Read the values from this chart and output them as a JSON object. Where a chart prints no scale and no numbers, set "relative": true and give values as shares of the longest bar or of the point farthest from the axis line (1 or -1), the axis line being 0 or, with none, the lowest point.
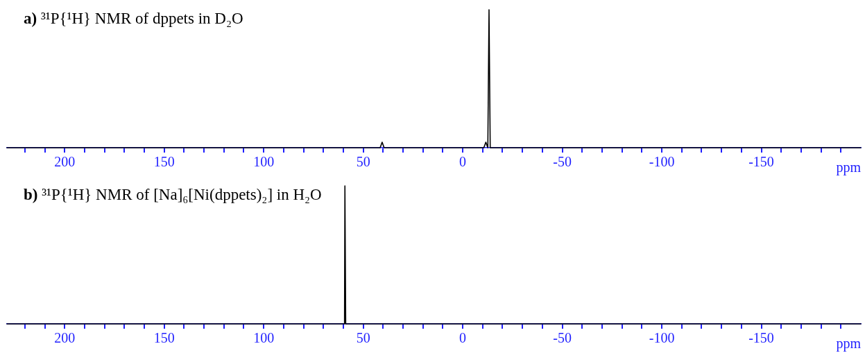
{
  "chart_data": [
    {
      "type": "line",
      "title": "a) ³¹P{¹H} NMR of dppets in D₂O",
      "xlabel": "ppm",
      "relative": true,
      "marker": "none",
      "color": "#000000",
      "xlim": [
        229,
        -200
      ],
      "x": [
        229,
        41.5,
        40.5,
        39.5,
        -10.6,
        -11.6,
        -12.6,
        -13.2,
        -13.8,
        -200
      ],
      "values": [
        0,
        0,
        0.04,
        0,
        0,
        0.04,
        0,
        1,
        0,
        0
      ],
      "xticks": [
        {
          "value": 220,
          "label": null
        },
        {
          "value": 210,
          "label": null
        },
        200,
        {
          "value": 190,
          "label": null
        },
        {
          "value": 180,
          "label": null
        },
        {
          "value": 170,
          "label": null
        },
        {
          "value": 160,
          "label": null
        },
        150,
        {
          "value": 140,
          "label": null
        },
        {
          "value": 130,
          "label": null
        },
        {
          "value": 120,
          "label": null
        },
        {
          "value": 110,
          "label": null
        },
        100,
        {
          "value": 90,
          "label": null
        },
        {
          "value": 80,
          "label": null
        },
        {
          "value": 70,
          "label": null
        },
        {
          "value": 60,
          "label": null
        },
        50,
        {
          "value": 40,
          "label": null
        },
        {
          "value": 30,
          "label": null
        },
        {
          "value": 20,
          "label": null
        },
        {
          "value": 10,
          "label": null
        },
        0,
        {
          "value": -10,
          "label": null
        },
        {
          "value": -20,
          "label": null
        },
        {
          "value": -30,
          "label": null
        },
        {
          "value": -40,
          "label": null
        },
        -50,
        {
          "value": -60,
          "label": null
        },
        {
          "value": -70,
          "label": null
        },
        {
          "value": -80,
          "label": null
        },
        {
          "value": -90,
          "label": null
        },
        -100,
        {
          "value": -110,
          "label": null
        },
        {
          "value": -120,
          "label": null
        },
        {
          "value": -130,
          "label": null
        },
        {
          "value": -140,
          "label": null
        },
        -150,
        {
          "value": -160,
          "label": null
        },
        {
          "value": -170,
          "label": null
        },
        {
          "value": -180,
          "label": null
        },
        {
          "value": -190,
          "label": null
        }
      ]
    },
    {
      "type": "line",
      "title": "b) ³¹P{¹H} NMR of [Na]₆[Ni(dppets)₂] in H₂O",
      "xlabel": "ppm",
      "relative": true,
      "marker": "none",
      "color": "#000000",
      "xlim": [
        229,
        -200
      ],
      "x": [
        229,
        59.4,
        59.2,
        59.0,
        58.8,
        -200
      ],
      "values": [
        0,
        0,
        1,
        1,
        0,
        0
      ],
      "xticks": [
        {
          "value": 220,
          "label": null
        },
        {
          "value": 210,
          "label": null
        },
        200,
        {
          "value": 190,
          "label": null
        },
        {
          "value": 180,
          "label": null
        },
        {
          "value": 170,
          "label": null
        },
        {
          "value": 160,
          "label": null
        },
        150,
        {
          "value": 140,
          "label": null
        },
        {
          "value": 130,
          "label": null
        },
        {
          "value": 120,
          "label": null
        },
        {
          "value": 110,
          "label": null
        },
        100,
        {
          "value": 90,
          "label": null
        },
        {
          "value": 80,
          "label": null
        },
        {
          "value": 70,
          "label": null
        },
        {
          "value": 60,
          "label": null
        },
        50,
        {
          "value": 40,
          "label": null
        },
        {
          "value": 30,
          "label": null
        },
        {
          "value": 20,
          "label": null
        },
        {
          "value": 10,
          "label": null
        },
        0,
        {
          "value": -10,
          "label": null
        },
        {
          "value": -20,
          "label": null
        },
        {
          "value": -30,
          "label": null
        },
        {
          "value": -40,
          "label": null
        },
        -50,
        {
          "value": -60,
          "label": null
        },
        {
          "value": -70,
          "label": null
        },
        {
          "value": -80,
          "label": null
        },
        {
          "value": -90,
          "label": null
        },
        -100,
        {
          "value": -110,
          "label": null
        },
        {
          "value": -120,
          "label": null
        },
        {
          "value": -130,
          "label": null
        },
        {
          "value": -140,
          "label": null
        },
        -150,
        {
          "value": -160,
          "label": null
        },
        {
          "value": -170,
          "label": null
        },
        {
          "value": -180,
          "label": null
        },
        {
          "value": -190,
          "label": null
        }
      ]
    }
  ]
}
